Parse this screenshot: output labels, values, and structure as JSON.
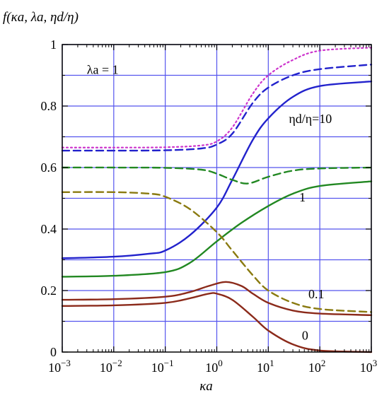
{
  "chart_data": {
    "type": "line",
    "title": "",
    "ylabel": "f(κa, λa, ηd/η)",
    "xlabel": "κa",
    "x_scale": "log",
    "xlim": [
      0.001,
      1000
    ],
    "ylim": [
      0,
      1
    ],
    "grid": true,
    "x_ticks": [
      0.001,
      0.01,
      0.1,
      1,
      10,
      100,
      1000
    ],
    "x_tick_labels": [
      {
        "base": "10",
        "exp": "−3"
      },
      {
        "base": "10",
        "exp": "−2"
      },
      {
        "base": "10",
        "exp": "−1"
      },
      {
        "base": "10",
        "exp": "0"
      },
      {
        "base": "10",
        "exp": "1"
      },
      {
        "base": "10",
        "exp": "2"
      },
      {
        "base": "10",
        "exp": "3"
      }
    ],
    "y_ticks": [
      0,
      0.2,
      0.4,
      0.6,
      0.8,
      1
    ],
    "y_tick_labels": [
      "0",
      "0.2",
      "0.4",
      "0.6",
      "0.8",
      "1"
    ],
    "annotations": [
      {
        "text": "λa = 1",
        "x": 0.003,
        "y": 0.905
      },
      {
        "text": "ηd/η=10",
        "x": 25,
        "y": 0.745
      },
      {
        "text": "1",
        "x": 40,
        "y": 0.49
      },
      {
        "text": "0.1",
        "x": 60,
        "y": 0.175
      },
      {
        "text": "0",
        "x": 45,
        "y": 0.04
      }
    ],
    "series": [
      {
        "style": "dotted",
        "color": "#cc33cc",
        "x": [
          0.001,
          0.01,
          0.1,
          0.5,
          1,
          2,
          5,
          10,
          30,
          100,
          1000
        ],
        "y": [
          0.665,
          0.665,
          0.666,
          0.672,
          0.685,
          0.73,
          0.84,
          0.9,
          0.95,
          0.98,
          0.99
        ]
      },
      {
        "style": "dashed",
        "color": "#2222cc",
        "x": [
          0.001,
          0.01,
          0.1,
          0.5,
          1,
          2,
          5,
          10,
          30,
          100,
          1000
        ],
        "y": [
          0.655,
          0.655,
          0.656,
          0.662,
          0.675,
          0.71,
          0.81,
          0.86,
          0.9,
          0.92,
          0.935
        ]
      },
      {
        "style": "solid",
        "color": "#2222cc",
        "x": [
          0.001,
          0.01,
          0.05,
          0.1,
          0.3,
          1,
          2,
          5,
          10,
          30,
          100,
          1000
        ],
        "y": [
          0.305,
          0.31,
          0.32,
          0.33,
          0.38,
          0.47,
          0.56,
          0.69,
          0.76,
          0.83,
          0.865,
          0.88
        ]
      },
      {
        "style": "dashed",
        "color": "#228822",
        "x": [
          0.001,
          0.01,
          0.1,
          0.5,
          1,
          2,
          4,
          10,
          30,
          100,
          1000
        ],
        "y": [
          0.6,
          0.6,
          0.599,
          0.593,
          0.58,
          0.56,
          0.548,
          0.57,
          0.59,
          0.597,
          0.6
        ]
      },
      {
        "style": "solid",
        "color": "#228822",
        "x": [
          0.001,
          0.01,
          0.1,
          0.3,
          1,
          3,
          10,
          30,
          100,
          1000
        ],
        "y": [
          0.245,
          0.248,
          0.26,
          0.29,
          0.36,
          0.42,
          0.475,
          0.515,
          0.54,
          0.555
        ]
      },
      {
        "style": "dashed",
        "color": "#8a7a10",
        "x": [
          0.001,
          0.01,
          0.05,
          0.1,
          0.3,
          1,
          2,
          5,
          10,
          30,
          100,
          1000
        ],
        "y": [
          0.52,
          0.52,
          0.515,
          0.505,
          0.465,
          0.39,
          0.33,
          0.25,
          0.2,
          0.16,
          0.14,
          0.13
        ]
      },
      {
        "style": "solid",
        "color": "#8b2a1a",
        "x": [
          0.001,
          0.01,
          0.1,
          0.3,
          0.7,
          1.5,
          3,
          5,
          10,
          30,
          100,
          1000
        ],
        "y": [
          0.17,
          0.172,
          0.18,
          0.195,
          0.215,
          0.228,
          0.215,
          0.19,
          0.16,
          0.135,
          0.125,
          0.12
        ]
      },
      {
        "style": "solid",
        "color": "#8b2a1a",
        "x": [
          0.001,
          0.01,
          0.1,
          0.3,
          0.7,
          1,
          2,
          5,
          10,
          30,
          100,
          1000
        ],
        "y": [
          0.15,
          0.152,
          0.16,
          0.175,
          0.19,
          0.19,
          0.17,
          0.115,
          0.07,
          0.025,
          0.005,
          0.0
        ]
      }
    ]
  }
}
